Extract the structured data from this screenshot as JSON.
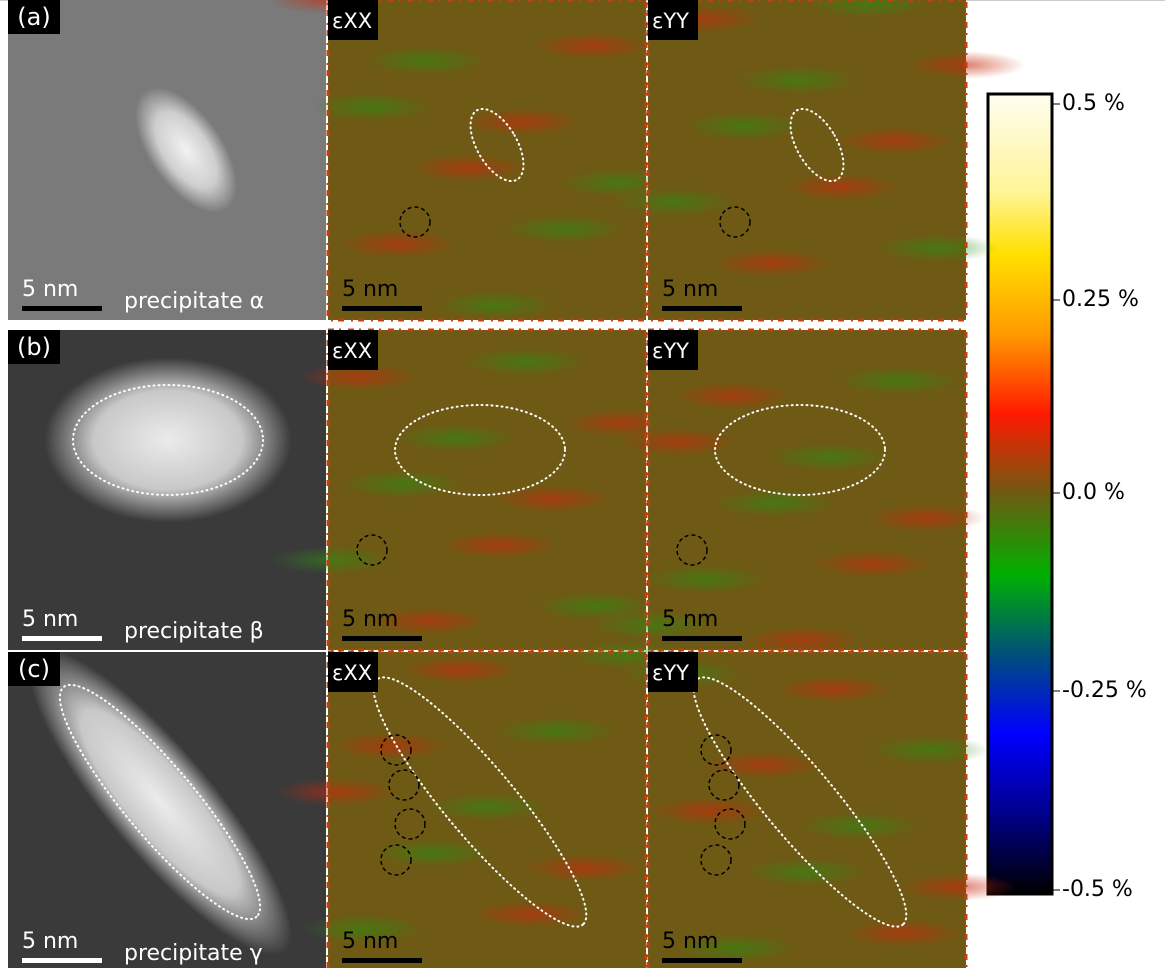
{
  "rows": [
    {
      "label": "(a)",
      "caption": "precipitate α",
      "scale": "5 nm",
      "maps": [
        {
          "label": "εXX",
          "scale": "5 nm"
        },
        {
          "label": "εYY",
          "scale": "5 nm"
        }
      ]
    },
    {
      "label": "(b)",
      "caption": "precipitate β",
      "scale": "5 nm",
      "maps": [
        {
          "label": "εXX",
          "scale": "5 nm"
        },
        {
          "label": "εYY",
          "scale": "5 nm"
        }
      ]
    },
    {
      "label": "(c)",
      "caption": "precipitate γ",
      "scale": "5 nm",
      "maps": [
        {
          "label": "εXX",
          "scale": "5 nm"
        },
        {
          "label": "εYY",
          "scale": "5 nm"
        }
      ]
    }
  ],
  "colorbar": {
    "ticks": [
      "0.5 %",
      "0.25 %",
      "0.0 %",
      "-0.25 %",
      "-0.5 %"
    ]
  }
}
